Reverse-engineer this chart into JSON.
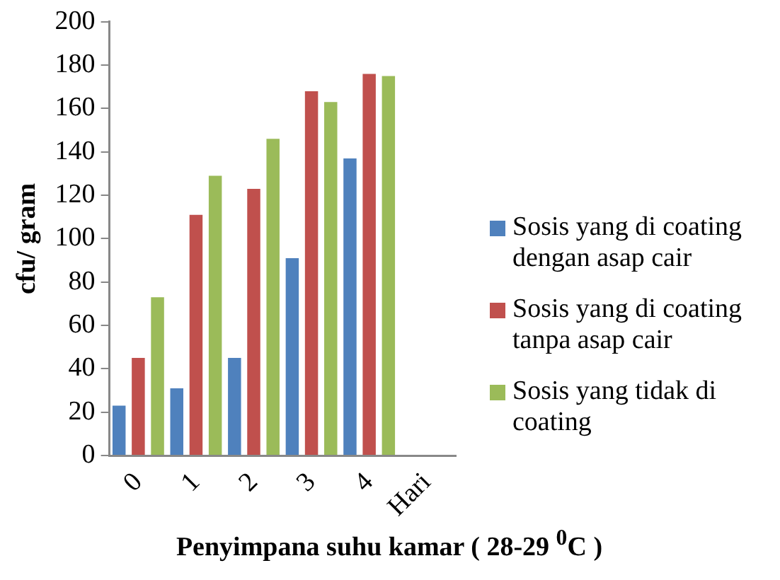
{
  "chart_data": {
    "type": "bar",
    "xlabel": "Penyimpana suhu kamar ( 28-29 $^{0}$C )",
    "ylabel": "cfu/ gram",
    "categories": [
      "0",
      "1",
      "2",
      "3",
      "4",
      "Hari"
    ],
    "series": [
      {
        "name": "Sosis yang di coating dengan asap cair",
        "color": "#4f81bd",
        "values": [
          23,
          31,
          45,
          91,
          137,
          null
        ]
      },
      {
        "name": "Sosis yang di coating tanpa asap cair",
        "color": "#c0504d",
        "values": [
          45,
          111,
          123,
          168,
          176,
          null
        ]
      },
      {
        "name": "Sosis yang tidak di coating",
        "color": "#9bbb59",
        "values": [
          73,
          129,
          146,
          163,
          175,
          null
        ]
      }
    ],
    "ylim": [
      0,
      200
    ],
    "yticks": [
      0,
      20,
      40,
      60,
      80,
      100,
      120,
      140,
      160,
      180,
      200
    ],
    "grid": false,
    "legend": "right"
  }
}
